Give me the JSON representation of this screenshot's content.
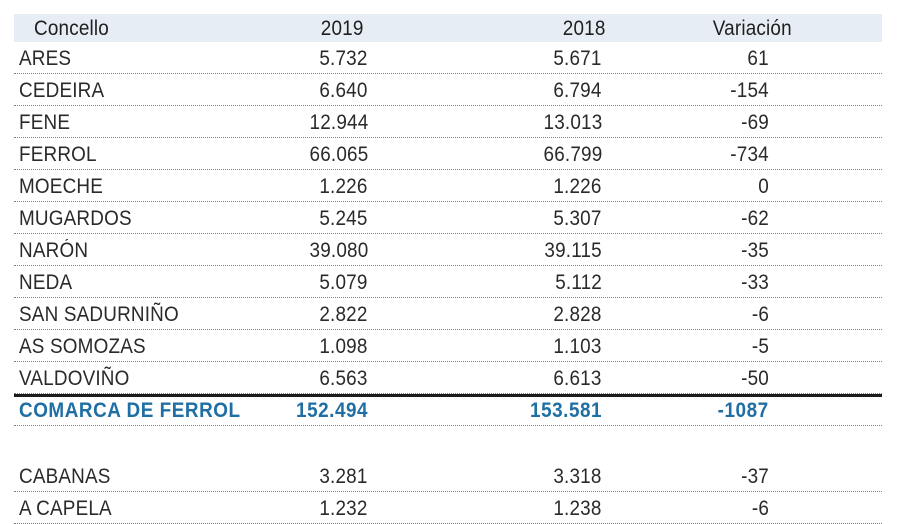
{
  "headers": {
    "name": "Concello",
    "y2019": "2019",
    "y2018": "2018",
    "variation": "Variación"
  },
  "rows": [
    {
      "name": "ARES",
      "y2019": "5.732",
      "y2018": "5.671",
      "variation": "61"
    },
    {
      "name": "CEDEIRA",
      "y2019": "6.640",
      "y2018": "6.794",
      "variation": "-154"
    },
    {
      "name": "FENE",
      "y2019": "12.944",
      "y2018": "13.013",
      "variation": "-69"
    },
    {
      "name": "FERROL",
      "y2019": "66.065",
      "y2018": "66.799",
      "variation": "-734"
    },
    {
      "name": "MOECHE",
      "y2019": "1.226",
      "y2018": "1.226",
      "variation": "0"
    },
    {
      "name": "MUGARDOS",
      "y2019": "5.245",
      "y2018": "5.307",
      "variation": "-62"
    },
    {
      "name": "NARÓN",
      "y2019": "39.080",
      "y2018": "39.115",
      "variation": "-35"
    },
    {
      "name": "NEDA",
      "y2019": "5.079",
      "y2018": "5.112",
      "variation": "-33"
    },
    {
      "name": "SAN SADURNIÑO",
      "y2019": "2.822",
      "y2018": "2.828",
      "variation": "-6"
    },
    {
      "name": "AS SOMOZAS",
      "y2019": "1.098",
      "y2018": "1.103",
      "variation": "-5"
    },
    {
      "name": "VALDOVIÑO",
      "y2019": "6.563",
      "y2018": "6.613",
      "variation": "-50"
    }
  ],
  "total": {
    "name": "COMARCA DE FERROL",
    "y2019": "152.494",
    "y2018": "153.581",
    "variation": "-1087"
  },
  "extra_rows": [
    {
      "name": "CABANAS",
      "y2019": "3.281",
      "y2018": "3.318",
      "variation": "-37"
    },
    {
      "name": "A CAPELA",
      "y2019": "1.232",
      "y2018": "1.238",
      "variation": "-6"
    }
  ],
  "colors": {
    "header_bg": "#e7edf4",
    "total_text": "#1f6fa5",
    "rule": "#1c1c1c"
  }
}
